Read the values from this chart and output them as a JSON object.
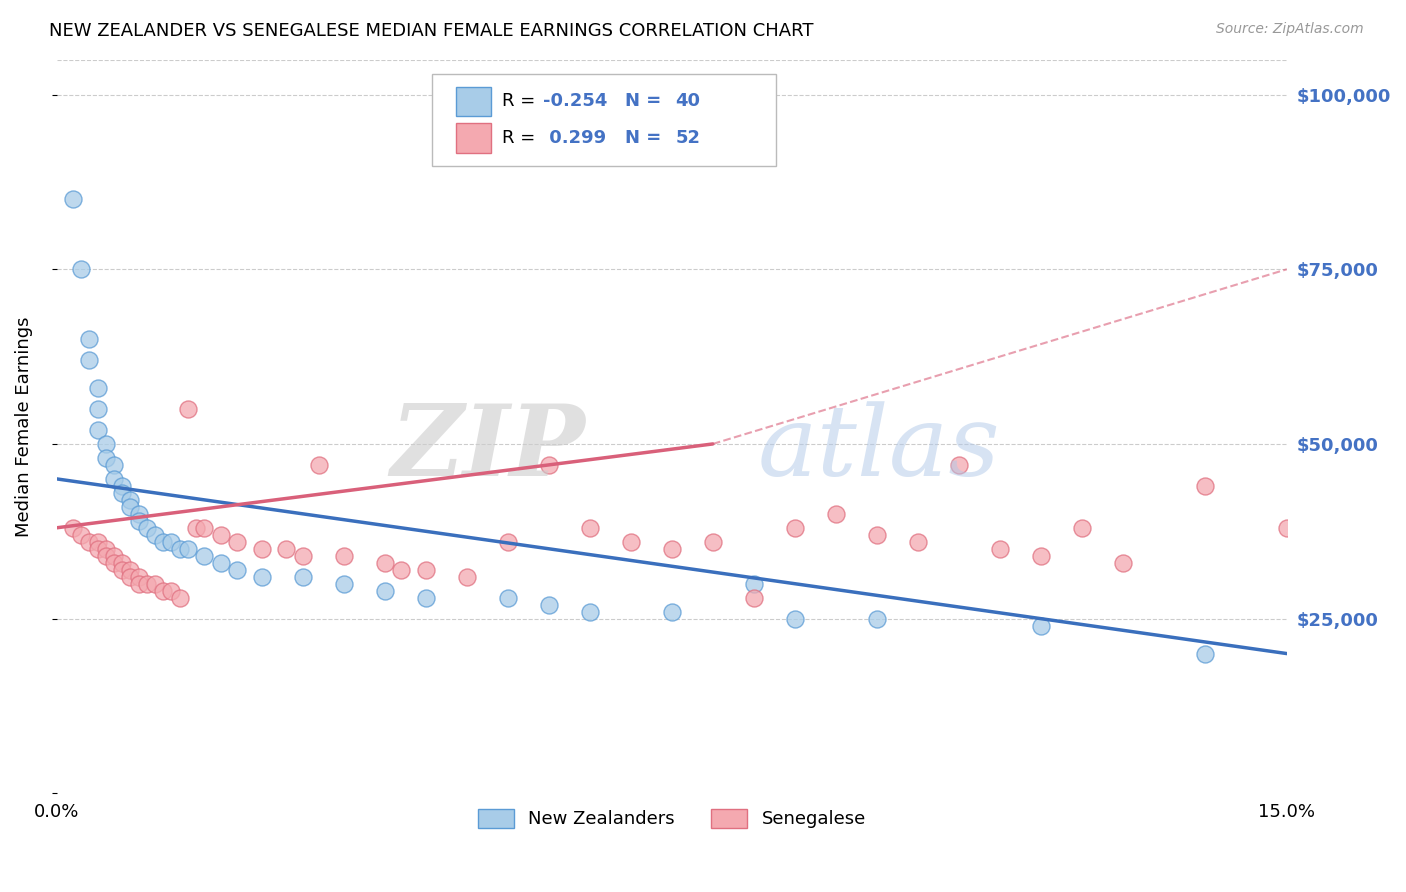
{
  "title": "NEW ZEALANDER VS SENEGALESE MEDIAN FEMALE EARNINGS CORRELATION CHART",
  "source": "Source: ZipAtlas.com",
  "ylabel": "Median Female Earnings",
  "xlim": [
    0.0,
    0.15
  ],
  "ylim": [
    0,
    105000
  ],
  "yticks": [
    0,
    25000,
    50000,
    75000,
    100000
  ],
  "ytick_labels": [
    "",
    "$25,000",
    "$50,000",
    "$75,000",
    "$100,000"
  ],
  "xticks": [
    0.0,
    0.15
  ],
  "xtick_labels": [
    "0.0%",
    "15.0%"
  ],
  "color_nz": "#a8cce8",
  "color_sen": "#f4a9b0",
  "color_nz_edge": "#5b9bd5",
  "color_sen_edge": "#e07080",
  "color_nz_line": "#3a6fbd",
  "color_sen_line": "#d9607a",
  "color_ytick": "#4472c4",
  "color_legend_text": "#4472c4",
  "nz_x": [
    0.002,
    0.003,
    0.004,
    0.004,
    0.005,
    0.005,
    0.005,
    0.006,
    0.006,
    0.007,
    0.007,
    0.008,
    0.008,
    0.009,
    0.009,
    0.01,
    0.01,
    0.011,
    0.012,
    0.013,
    0.014,
    0.015,
    0.016,
    0.018,
    0.02,
    0.022,
    0.025,
    0.03,
    0.035,
    0.04,
    0.045,
    0.055,
    0.06,
    0.065,
    0.075,
    0.085,
    0.09,
    0.1,
    0.12,
    0.14
  ],
  "nz_y": [
    85000,
    75000,
    65000,
    62000,
    58000,
    55000,
    52000,
    50000,
    48000,
    47000,
    45000,
    44000,
    43000,
    42000,
    41000,
    40000,
    39000,
    38000,
    37000,
    36000,
    36000,
    35000,
    35000,
    34000,
    33000,
    32000,
    31000,
    31000,
    30000,
    29000,
    28000,
    28000,
    27000,
    26000,
    26000,
    30000,
    25000,
    25000,
    24000,
    20000
  ],
  "sen_x": [
    0.002,
    0.003,
    0.004,
    0.005,
    0.005,
    0.006,
    0.006,
    0.007,
    0.007,
    0.008,
    0.008,
    0.009,
    0.009,
    0.01,
    0.01,
    0.011,
    0.012,
    0.013,
    0.014,
    0.015,
    0.016,
    0.017,
    0.018,
    0.02,
    0.022,
    0.025,
    0.028,
    0.03,
    0.032,
    0.035,
    0.04,
    0.042,
    0.045,
    0.05,
    0.055,
    0.06,
    0.065,
    0.07,
    0.075,
    0.08,
    0.085,
    0.09,
    0.095,
    0.1,
    0.105,
    0.11,
    0.115,
    0.12,
    0.125,
    0.13,
    0.14,
    0.15
  ],
  "sen_y": [
    38000,
    37000,
    36000,
    36000,
    35000,
    35000,
    34000,
    34000,
    33000,
    33000,
    32000,
    32000,
    31000,
    31000,
    30000,
    30000,
    30000,
    29000,
    29000,
    28000,
    55000,
    38000,
    38000,
    37000,
    36000,
    35000,
    35000,
    34000,
    47000,
    34000,
    33000,
    32000,
    32000,
    31000,
    36000,
    47000,
    38000,
    36000,
    35000,
    36000,
    28000,
    38000,
    40000,
    37000,
    36000,
    47000,
    35000,
    34000,
    38000,
    33000,
    44000,
    38000
  ]
}
